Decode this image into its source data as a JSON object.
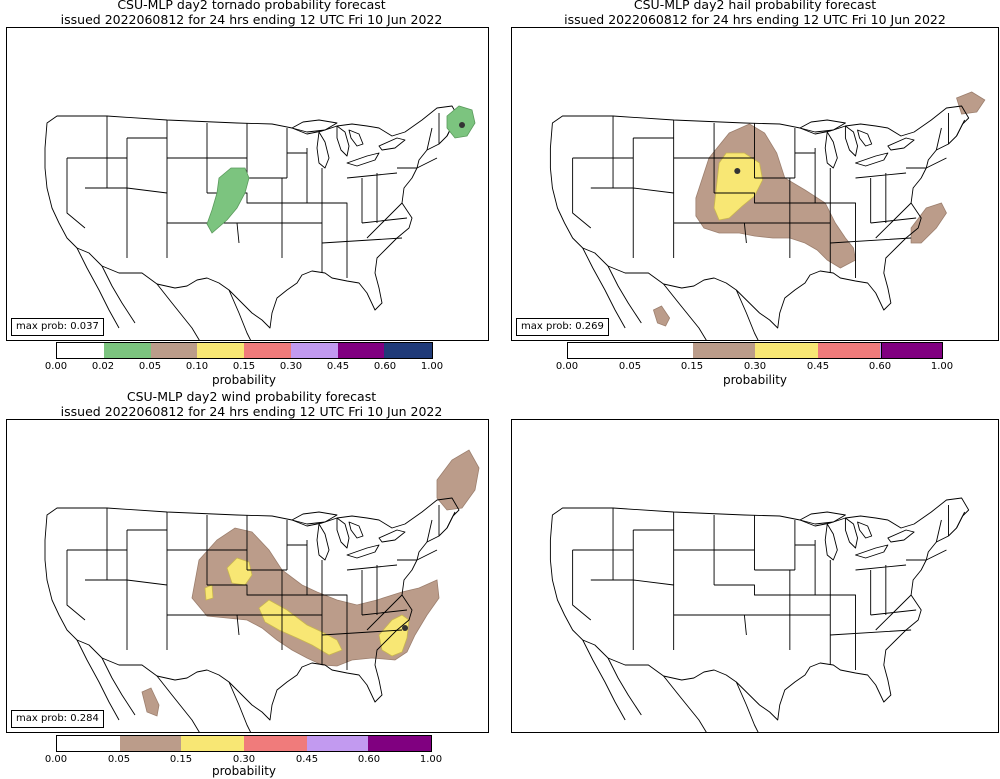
{
  "colors": {
    "green": "#7cc47f",
    "brown": "#bb9c8a",
    "yellow": "#f8e774",
    "red": "#f07b7b",
    "purple": "#c29af0",
    "darkpurple": "#800080",
    "navy": "#1f3a78"
  },
  "panels": {
    "tornado": {
      "title_line1": "CSU-MLP day2 tornado probability forecast",
      "title_line2": "issued 2022060812 for 24 hrs ending 12 UTC Fri 10 Jun 2022",
      "max_prob": "max prob: 0.037",
      "colorbar_label": "probability",
      "ticks": [
        "0.00",
        "0.02",
        "0.05",
        "0.10",
        "0.15",
        "0.30",
        "0.45",
        "0.60",
        "1.00"
      ]
    },
    "hail": {
      "title_line1": "CSU-MLP day2 hail probability forecast",
      "title_line2": "issued 2022060812 for 24 hrs ending 12 UTC Fri 10 Jun 2022",
      "max_prob": "max prob: 0.269",
      "colorbar_label": "probability",
      "ticks": [
        "0.00",
        "0.05",
        "0.15",
        "0.30",
        "0.45",
        "0.60",
        "1.00"
      ]
    },
    "wind": {
      "title_line1": "CSU-MLP day2 wind probability forecast",
      "title_line2": "issued 2022060812 for 24 hrs ending 12 UTC Fri 10 Jun 2022",
      "max_prob": "max prob: 0.284",
      "colorbar_label": "probability",
      "ticks": [
        "0.00",
        "0.05",
        "0.15",
        "0.30",
        "0.45",
        "0.60",
        "1.00"
      ]
    }
  }
}
